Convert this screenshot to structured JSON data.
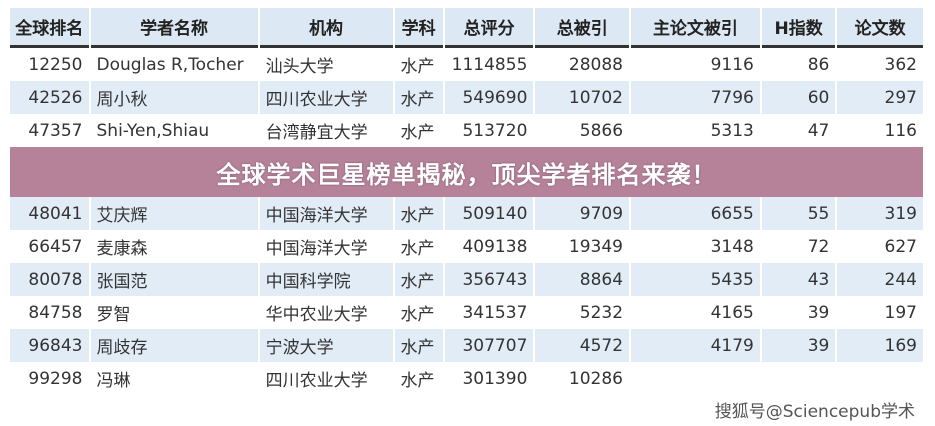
{
  "headers": [
    "全球排名",
    "学者名称",
    "机构",
    "学科",
    "总评分",
    "总被引",
    "主论文被引",
    "H指数",
    "论文数"
  ],
  "rows": [
    [
      "12250",
      "Douglas R,Tocher",
      "汕头大学",
      "水产",
      "1114855",
      "28088",
      "9116",
      "86",
      "362"
    ],
    [
      "42526",
      "周小秋",
      "四川农业大学",
      "水产",
      "549690",
      "10702",
      "7796",
      "60",
      "297"
    ],
    [
      "47357",
      "Shi-Yen,Shiau",
      "台湾静宜大学",
      "水产",
      "513720",
      "5866",
      "5313",
      "47",
      "116"
    ],
    [
      "48041",
      "艾庆辉",
      "中国海洋大学",
      "水产",
      "509140",
      "9709",
      "6655",
      "55",
      "319"
    ],
    [
      "66457",
      "麦康森",
      "中国海洋大学",
      "水产",
      "409138",
      "19349",
      "3148",
      "72",
      "627"
    ],
    [
      "80078",
      "张国范",
      "中国科学院",
      "水产",
      "356743",
      "8864",
      "5435",
      "43",
      "244"
    ],
    [
      "84758",
      "罗智",
      "华中农业大学",
      "水产",
      "341537",
      "5232",
      "4165",
      "39",
      "197"
    ],
    [
      "96843",
      "周歧存",
      "宁波大学",
      "水产",
      "307707",
      "4572",
      "4179",
      "39",
      "169"
    ],
    [
      "99298",
      "冯琳",
      "四川农业大学",
      "水产",
      "301390",
      "10286",
      "",
      "",
      ""
    ]
  ],
  "banner": "全球学术巨星榜单揭秘，顶尖学者排名来袭！",
  "watermark": "搜狐号@Sciencepub学术"
}
